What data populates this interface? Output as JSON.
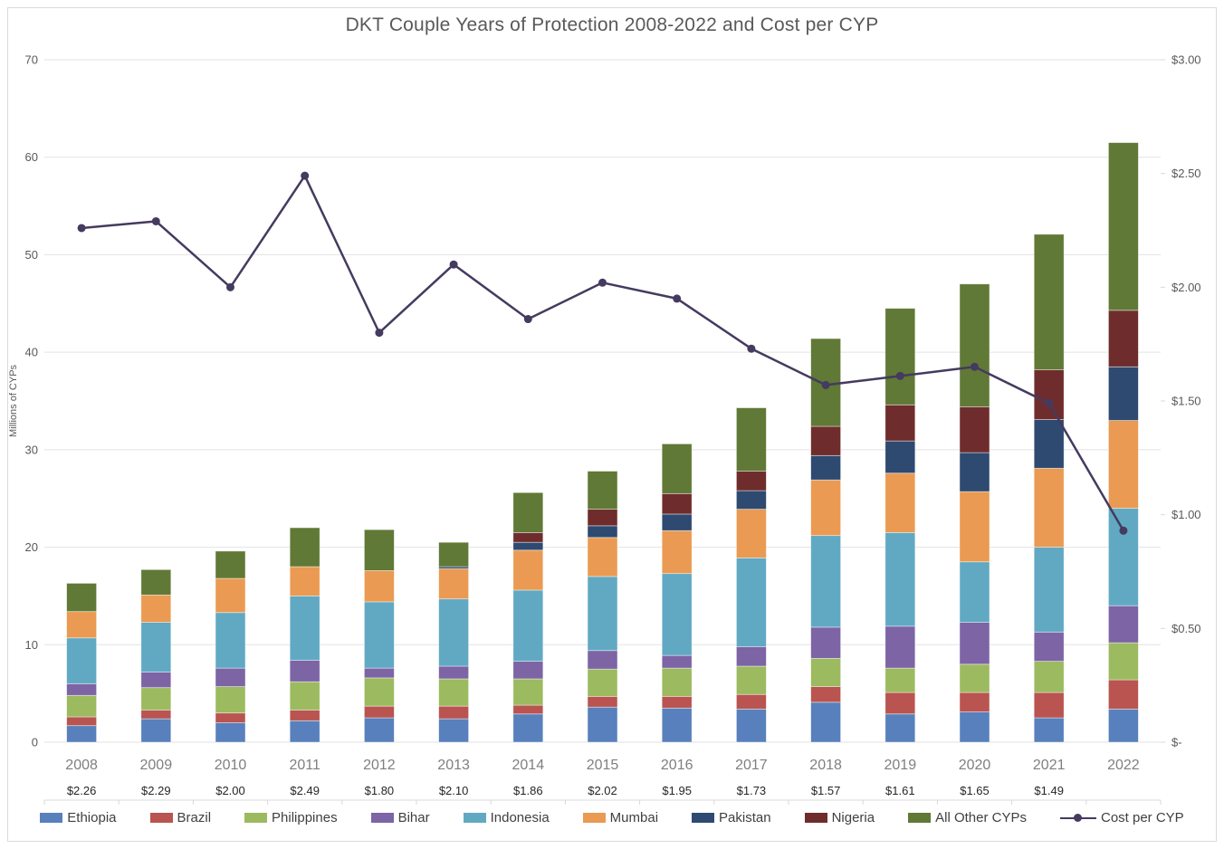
{
  "title": "DKT Couple Years of Protection 2008-2022 and Cost per CYP",
  "chart_data": {
    "type": "bar",
    "subtype": "stacked-bars-with-line-overlay",
    "title": "DKT Couple Years of Protection 2008-2022 and Cost per CYP",
    "categories": [
      "2008",
      "2009",
      "2010",
      "2011",
      "2012",
      "2013",
      "2014",
      "2015",
      "2016",
      "2017",
      "2018",
      "2019",
      "2020",
      "2021",
      "2022"
    ],
    "series": [
      {
        "name": "Ethiopia",
        "color": "#5880BC",
        "values": [
          1.7,
          2.4,
          2.0,
          2.2,
          2.5,
          2.4,
          2.9,
          3.6,
          3.5,
          3.4,
          4.1,
          2.9,
          3.1,
          2.5,
          3.4
        ]
      },
      {
        "name": "Brazil",
        "color": "#B95450",
        "values": [
          0.9,
          0.9,
          1.0,
          1.1,
          1.2,
          1.3,
          0.9,
          1.1,
          1.2,
          1.5,
          1.6,
          2.2,
          2.0,
          2.6,
          3.0
        ]
      },
      {
        "name": "Philippines",
        "color": "#9CBA5F",
        "values": [
          2.2,
          2.3,
          2.7,
          2.9,
          2.9,
          2.8,
          2.7,
          2.8,
          2.9,
          2.9,
          2.9,
          2.5,
          2.9,
          3.2,
          3.8
        ]
      },
      {
        "name": "Bihar",
        "color": "#7C64A5",
        "values": [
          1.2,
          1.6,
          1.9,
          2.2,
          1.0,
          1.3,
          1.8,
          1.9,
          1.3,
          2.0,
          3.2,
          4.3,
          4.3,
          3.0,
          3.8
        ]
      },
      {
        "name": "Indonesia",
        "color": "#61A9C3",
        "values": [
          4.7,
          5.1,
          5.7,
          6.6,
          6.8,
          6.9,
          7.3,
          7.6,
          8.4,
          9.1,
          9.4,
          9.6,
          6.2,
          8.7,
          10.0
        ]
      },
      {
        "name": "Mumbai",
        "color": "#EA9A52",
        "values": [
          2.7,
          2.8,
          3.5,
          3.0,
          3.2,
          3.1,
          4.1,
          4.0,
          4.4,
          5.0,
          5.7,
          6.1,
          7.2,
          8.1,
          9.0
        ]
      },
      {
        "name": "Pakistan",
        "color": "#2E4A70",
        "values": [
          0,
          0,
          0,
          0,
          0,
          0.2,
          0.8,
          1.2,
          1.7,
          1.9,
          2.5,
          3.3,
          4.0,
          5.0,
          5.5
        ]
      },
      {
        "name": "Nigeria",
        "color": "#6E2D2C",
        "values": [
          0,
          0,
          0,
          0,
          0,
          0,
          1.0,
          1.7,
          2.1,
          2.0,
          3.0,
          3.7,
          4.7,
          5.1,
          5.8
        ]
      },
      {
        "name": "All Other CYPs",
        "color": "#607936",
        "values": [
          2.9,
          2.6,
          2.8,
          4.0,
          4.2,
          2.5,
          4.1,
          3.9,
          5.1,
          6.5,
          9.0,
          9.9,
          12.6,
          13.9,
          17.2
        ]
      }
    ],
    "line_series": {
      "name": "Cost per CYP",
      "color": "#453A5F",
      "values": [
        2.26,
        2.29,
        2.0,
        2.49,
        1.8,
        2.1,
        1.86,
        2.02,
        1.95,
        1.73,
        1.57,
        1.61,
        1.65,
        1.49,
        0.93
      ]
    },
    "cost_labels": [
      "$2.26",
      "$2.29",
      "$2.00",
      "$2.49",
      "$1.80",
      "$2.10",
      "$1.86",
      "$2.02",
      "$1.95",
      "$1.73",
      "$1.57",
      "$1.61",
      "$1.65",
      "$1.49",
      ""
    ],
    "left_axis": {
      "label": "Millions of CYPs",
      "min": 0,
      "max": 70,
      "step": 10,
      "ticks": [
        "0",
        "10",
        "20",
        "30",
        "40",
        "50",
        "60",
        "70"
      ]
    },
    "right_axis": {
      "min": 0,
      "max": 3,
      "step": 0.5,
      "ticks": [
        "$-",
        "$0.50",
        "$1.00",
        "$1.50",
        "$2.00",
        "$2.50",
        "$3.00"
      ]
    },
    "grid": true,
    "legend_position": "bottom",
    "legend_entries": [
      "Ethiopia",
      "Brazil",
      "Philippines",
      "Bihar",
      "Indonesia",
      "Mumbai",
      "Pakistan",
      "Nigeria",
      "All Other CYPs",
      "Cost per CYP"
    ]
  },
  "colors": {
    "grid": "#e2e2e2",
    "axis_tick_text": "#595959",
    "year_label": "#7f7f7f",
    "cost_label": "#262626",
    "title_text": "#595959",
    "legend_text": "#404040",
    "table_rule": "#d9d9d9"
  }
}
